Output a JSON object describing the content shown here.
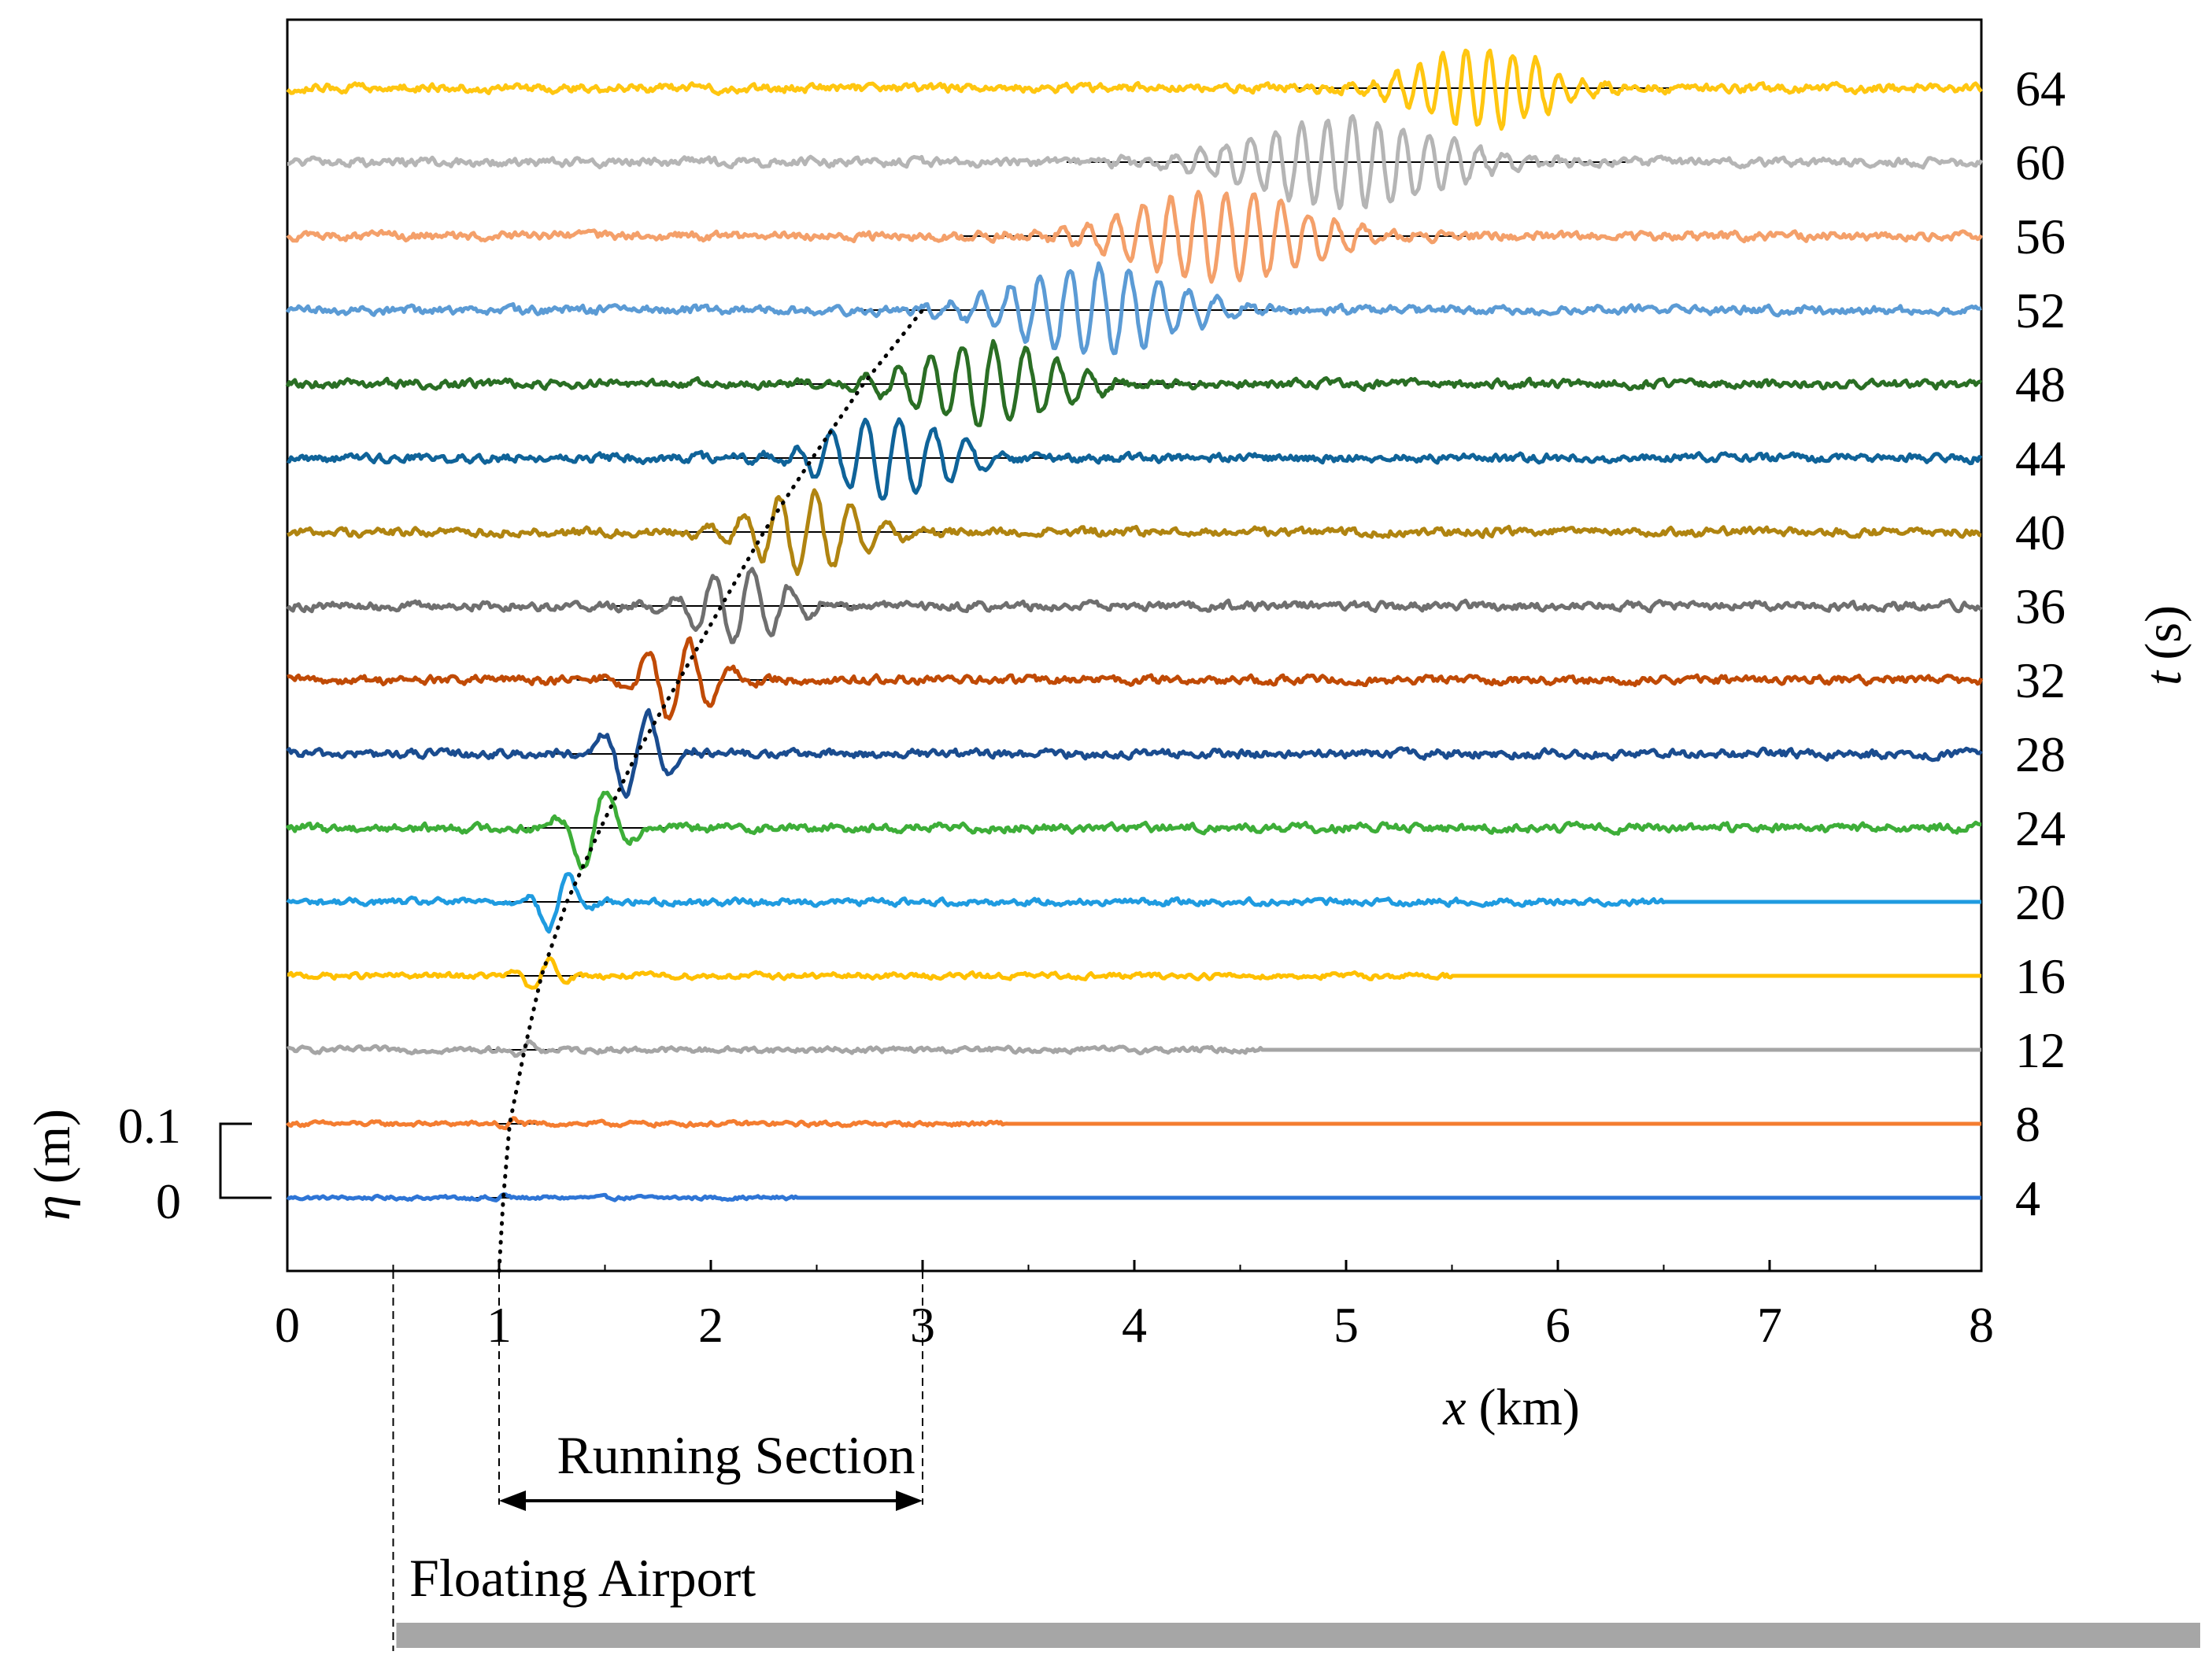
{
  "chart_data": {
    "type": "line",
    "title": "",
    "xlabel_var": "x",
    "xlabel_unit": "(km)",
    "xlim": [
      0,
      8
    ],
    "x_ticks": [
      "0",
      "1",
      "2",
      "3",
      "4",
      "5",
      "6",
      "7",
      "8"
    ],
    "right_axis_var": "t",
    "right_axis_unit": "(s)",
    "scale_bar": {
      "var": "η",
      "unit": "(m)",
      "top_label": "0.1",
      "bottom_label": "0",
      "amplitude_m": 0.1
    },
    "annotations": {
      "running_section": "Running Section",
      "floating_airport": "Floating Airport"
    },
    "running_section_km": [
      1,
      3
    ],
    "airport_start_km": 0.5,
    "series": [
      {
        "t": "4",
        "color": "#2E75D6",
        "packet_center_km": 1.0,
        "packet_width_km": 0.05,
        "amplitude_m": 0.005,
        "wavelength_km": 0.12,
        "noise_m": 0.004,
        "noise_end_km": 2.4
      },
      {
        "t": "8",
        "color": "#F47D30",
        "packet_center_km": 1.05,
        "packet_width_km": 0.06,
        "amplitude_m": 0.008,
        "wavelength_km": 0.12,
        "noise_m": 0.005,
        "noise_end_km": 3.4
      },
      {
        "t": "12",
        "color": "#A5A5A5",
        "packet_center_km": 1.12,
        "packet_width_km": 0.08,
        "amplitude_m": 0.012,
        "wavelength_km": 0.15,
        "noise_m": 0.006,
        "noise_end_km": 4.6
      },
      {
        "t": "16",
        "color": "#FFC000",
        "packet_center_km": 1.2,
        "packet_width_km": 0.1,
        "amplitude_m": 0.025,
        "wavelength_km": 0.18,
        "noise_m": 0.006,
        "noise_end_km": 5.5
      },
      {
        "t": "20",
        "color": "#1F9BE0",
        "packet_center_km": 1.28,
        "packet_width_km": 0.12,
        "amplitude_m": 0.045,
        "wavelength_km": 0.22,
        "noise_m": 0.007,
        "noise_end_km": 6.5
      },
      {
        "t": "24",
        "color": "#3DAE38",
        "packet_center_km": 1.45,
        "packet_width_km": 0.15,
        "amplitude_m": 0.06,
        "wavelength_km": 0.25,
        "noise_m": 0.009,
        "noise_end_km": 8.0
      },
      {
        "t": "28",
        "color": "#1A4C8F",
        "packet_center_km": 1.65,
        "packet_width_km": 0.18,
        "amplitude_m": 0.06,
        "wavelength_km": 0.22,
        "noise_m": 0.009,
        "noise_end_km": 8.0
      },
      {
        "t": "32",
        "color": "#C04A05",
        "packet_center_km": 1.85,
        "packet_width_km": 0.22,
        "amplitude_m": 0.055,
        "wavelength_km": 0.2,
        "noise_m": 0.009,
        "noise_end_km": 8.0
      },
      {
        "t": "36",
        "color": "#6F6F6F",
        "packet_center_km": 2.15,
        "packet_width_km": 0.28,
        "amplitude_m": 0.05,
        "wavelength_km": 0.18,
        "noise_m": 0.009,
        "noise_end_km": 8.0
      },
      {
        "t": "40",
        "color": "#B08410",
        "packet_center_km": 2.45,
        "packet_width_km": 0.32,
        "amplitude_m": 0.055,
        "wavelength_km": 0.17,
        "noise_m": 0.009,
        "noise_end_km": 8.0
      },
      {
        "t": "44",
        "color": "#0F6399",
        "packet_center_km": 2.85,
        "packet_width_km": 0.38,
        "amplitude_m": 0.055,
        "wavelength_km": 0.16,
        "noise_m": 0.009,
        "noise_end_km": 8.0
      },
      {
        "t": "48",
        "color": "#2A6E24",
        "packet_center_km": 3.3,
        "packet_width_km": 0.45,
        "amplitude_m": 0.055,
        "wavelength_km": 0.15,
        "noise_m": 0.009,
        "noise_end_km": 8.0
      },
      {
        "t": "52",
        "color": "#5B9BD5",
        "packet_center_km": 3.8,
        "packet_width_km": 0.5,
        "amplitude_m": 0.06,
        "wavelength_km": 0.14,
        "noise_m": 0.009,
        "noise_end_km": 8.0
      },
      {
        "t": "56",
        "color": "#F4A06A",
        "packet_center_km": 4.4,
        "packet_width_km": 0.55,
        "amplitude_m": 0.06,
        "wavelength_km": 0.13,
        "noise_m": 0.009,
        "noise_end_km": 8.0
      },
      {
        "t": "60",
        "color": "#B5B5B5",
        "packet_center_km": 5.0,
        "packet_width_km": 0.6,
        "amplitude_m": 0.06,
        "wavelength_km": 0.12,
        "noise_m": 0.009,
        "noise_end_km": 8.0
      },
      {
        "t": "64",
        "color": "#FFC610",
        "packet_center_km": 5.65,
        "packet_width_km": 0.4,
        "amplitude_m": 0.055,
        "wavelength_km": 0.11,
        "noise_m": 0.009,
        "noise_end_km": 8.0
      }
    ],
    "front_curve": [
      {
        "t": 0,
        "x_km": 1.0
      },
      {
        "t": 4,
        "x_km": 1.02
      },
      {
        "t": 8,
        "x_km": 1.05
      },
      {
        "t": 12,
        "x_km": 1.12
      },
      {
        "t": 16,
        "x_km": 1.2
      },
      {
        "t": 20,
        "x_km": 1.32
      },
      {
        "t": 24,
        "x_km": 1.48
      },
      {
        "t": 28,
        "x_km": 1.65
      },
      {
        "t": 32,
        "x_km": 1.85
      },
      {
        "t": 36,
        "x_km": 2.05
      },
      {
        "t": 40,
        "x_km": 2.25
      },
      {
        "t": 44,
        "x_km": 2.48
      },
      {
        "t": 48,
        "x_km": 2.72
      },
      {
        "t": 52,
        "x_km": 3.0
      }
    ]
  }
}
